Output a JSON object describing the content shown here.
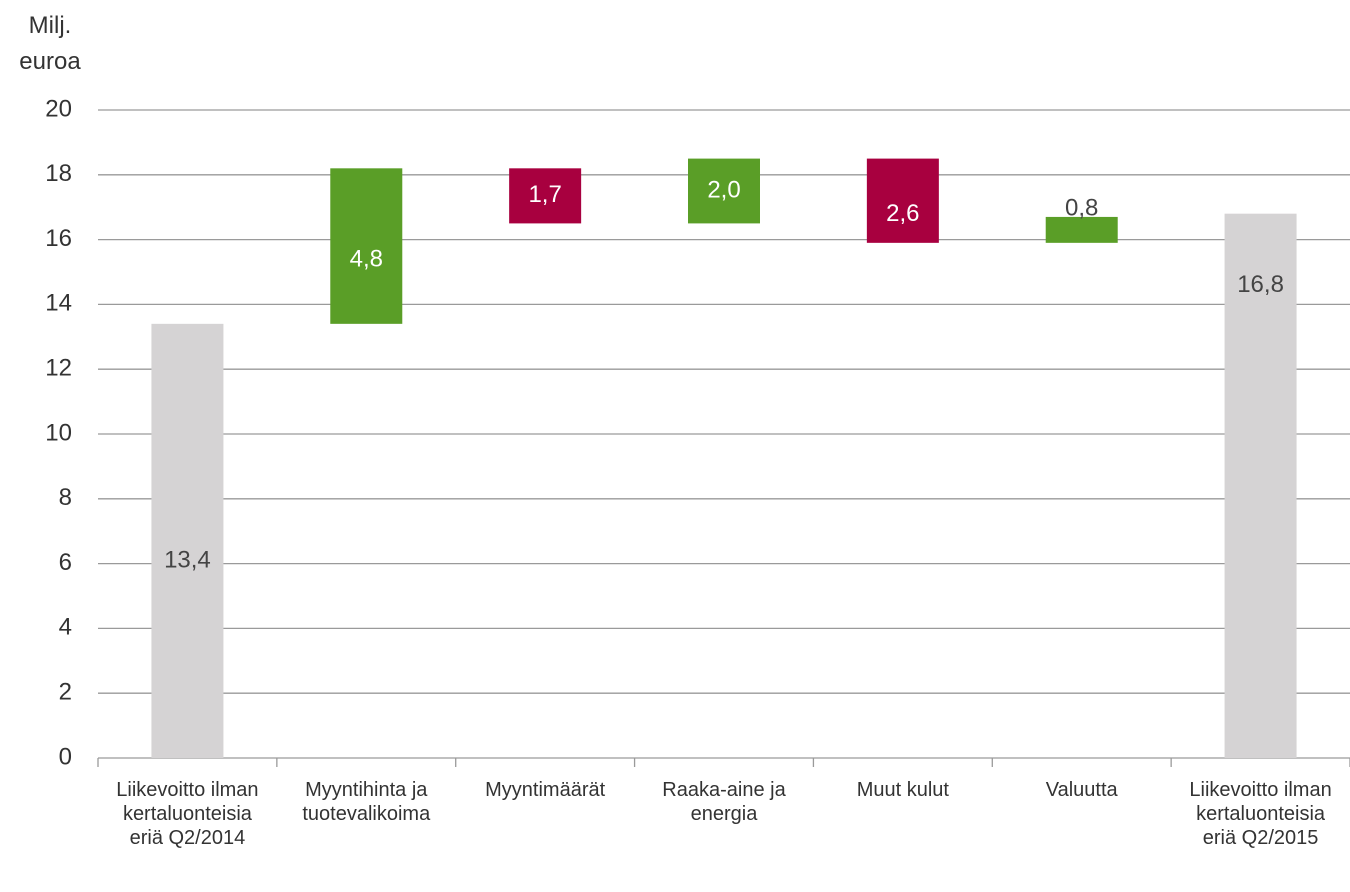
{
  "chart_data": {
    "type": "waterfall",
    "y_label": "Milj. euroa",
    "categories": [
      "Liikevoitto ilman kertaluonteisia eriä Q2/2014",
      "Myyntihinta ja tuotevalikoima",
      "Myyntimäärät",
      "Raaka-aine ja energia",
      "Muut kulut",
      "Valuutta",
      "Liikevoitto ilman kertaluonteisia eriä Q2/2015"
    ],
    "values": [
      13.4,
      4.8,
      -1.7,
      2.0,
      -2.6,
      0.8,
      16.8
    ],
    "value_labels": [
      "13,4",
      "4,8",
      "1,7",
      "2,0",
      "2,6",
      "0,8",
      "16,8"
    ],
    "measures": [
      "total",
      "relative",
      "relative",
      "relative",
      "relative",
      "relative",
      "total"
    ],
    "colors": [
      "#d5d3d4",
      "#5a9e27",
      "#a8003f",
      "#5a9e27",
      "#a8003f",
      "#5a9e27",
      "#d5d3d4"
    ],
    "ylim": [
      0,
      20
    ],
    "yticks": [
      0,
      2,
      4,
      6,
      8,
      10,
      12,
      14,
      16,
      18,
      20
    ],
    "grid": true
  }
}
